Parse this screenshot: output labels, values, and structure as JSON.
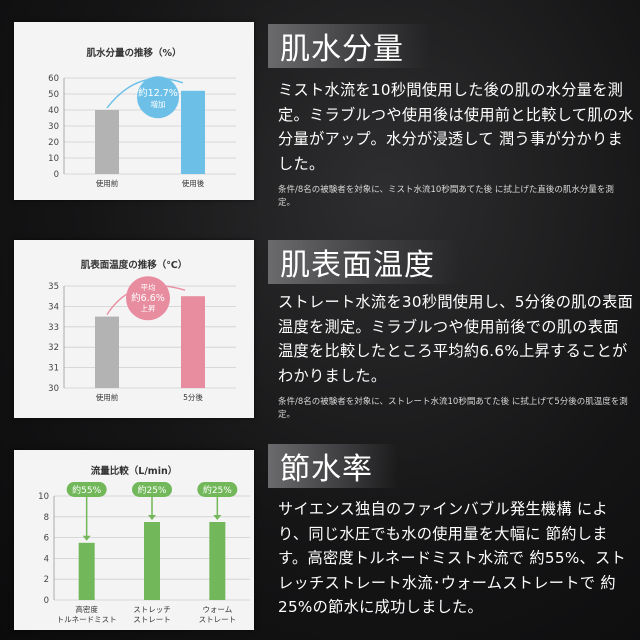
{
  "sections": [
    {
      "heading": "肌水分量",
      "body": "ミスト水流を10秒間使用した後の肌の水分量を測定。ミラブルつや使用後は使用前と比較して肌の水分量がアップ。水分が浸透して 潤う事が分かりました。",
      "note": "条件/8名の被験者を対象に、ミスト水流10秒間あてた後 に拭上げた直後の肌水分量を測定。"
    },
    {
      "heading": "肌表面温度",
      "body": "ストレート水流を30秒間使用し、5分後の肌の表面温度を測定。ミラブルつや使用前後での肌の表面温度を比較したところ平均約6.6%上昇することがわかりました。",
      "note": "条件/8名の被験者を対象に、ストレート水流10秒間あてた後 に拭上げて5分後の肌温度を測定。"
    },
    {
      "heading": "節水率",
      "body": "サイエンス独自のファインバブル発生機構 により、同じ水圧でも水の使用量を大幅に 節約します。高密度トルネードミスト水流で 約55%、ストレッチストレート水流･ウォームストレートで 約25%の節水に成功しました。",
      "note": ""
    }
  ],
  "chart_data": [
    {
      "type": "bar",
      "title": "肌水分量の推移（%）",
      "categories": [
        "使用前",
        "使用後"
      ],
      "values": [
        40,
        52
      ],
      "ylim": [
        0,
        60
      ],
      "yticks": [
        0,
        10,
        20,
        30,
        40,
        50,
        60
      ],
      "colors": [
        "#b3b3b3",
        "#6cc0e8"
      ],
      "grid": true,
      "annotation": {
        "line1": "約12.7%",
        "line2": "増加",
        "color": "#6cc0e8"
      }
    },
    {
      "type": "bar",
      "title": "肌表面温度の推移（℃）",
      "categories": [
        "使用前",
        "5分後"
      ],
      "values": [
        33.5,
        34.5
      ],
      "ylim": [
        30,
        35
      ],
      "yticks": [
        30,
        31,
        32,
        33,
        34,
        35
      ],
      "colors": [
        "#b3b3b3",
        "#e88da0"
      ],
      "grid": true,
      "annotation": {
        "line1": "平均",
        "line2": "約6.6%",
        "line3": "上昇",
        "color": "#e88da0"
      }
    },
    {
      "type": "bar",
      "title": "流量比較（L/min）",
      "categories": [
        "高密度\nトルネードミスト",
        "ストレッチ\nストレート",
        "ウォーム\nストレート"
      ],
      "values": [
        5.5,
        7.5,
        7.5
      ],
      "ylim": [
        0,
        10
      ],
      "yticks": [
        0,
        2,
        4,
        6,
        8,
        10
      ],
      "colors": [
        "#72b85a",
        "#72b85a",
        "#72b85a"
      ],
      "grid": true,
      "labels": [
        "約55%",
        "約25%",
        "約25%"
      ]
    }
  ]
}
